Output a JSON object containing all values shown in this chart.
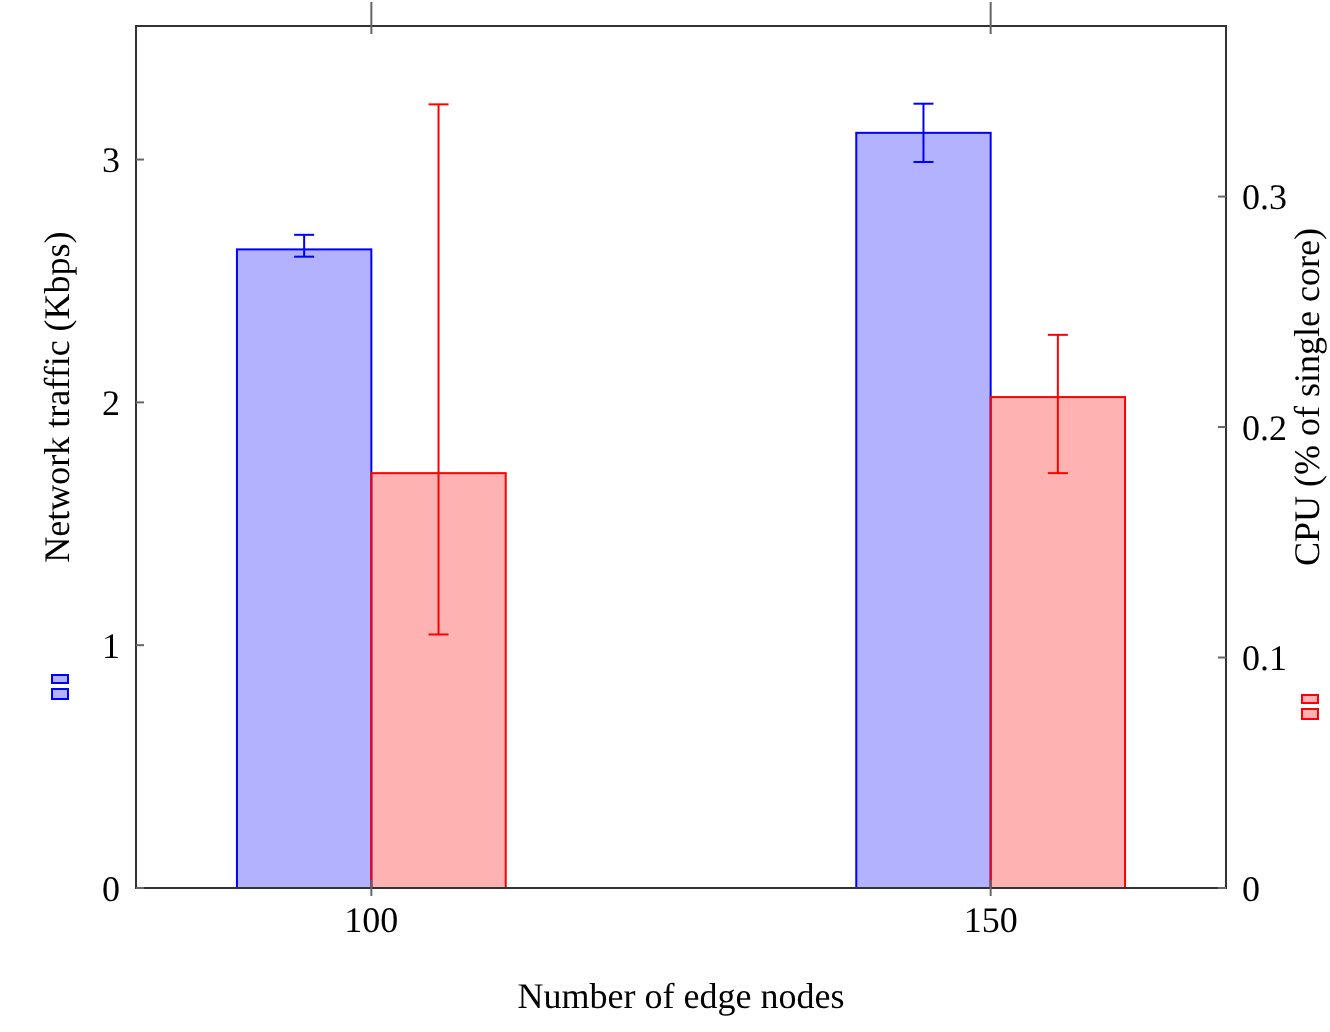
{
  "chart_data": {
    "type": "bar",
    "xlabel": "Number of edge nodes",
    "ylabel": "Network traffic (Kbps)",
    "y2label": "CPU (% of single core)",
    "categories": [
      "100",
      "150"
    ],
    "series": [
      {
        "color": "#0000ff",
        "values": [
          2.63,
          3.11
        ],
        "errors": [
          [
            2.6,
            2.69
          ],
          [
            2.99,
            3.23
          ]
        ]
      },
      {
        "color": "#ff0000",
        "axis": "y2",
        "values": [
          0.18,
          0.213
        ],
        "errors": [
          [
            0.11,
            0.34
          ],
          [
            0.18,
            0.24
          ]
        ]
      }
    ],
    "ylim": [
      0,
      3.55
    ],
    "yticks": [
      0,
      1,
      2,
      3
    ],
    "y2lim": [
      0,
      0.374
    ],
    "y2ticks": [
      0,
      0.1,
      0.2,
      0.3
    ],
    "grid": false
  }
}
